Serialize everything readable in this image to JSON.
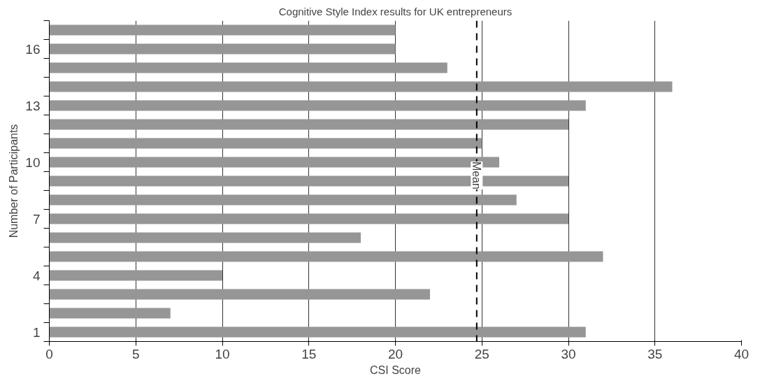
{
  "chart_data": {
    "type": "bar",
    "orientation": "horizontal",
    "title": "Cognitive Style Index results for UK entrepreneurs",
    "xlabel": "CSI Score",
    "ylabel": "Number of Participants",
    "categories": [
      null,
      "16",
      null,
      null,
      "13",
      null,
      null,
      "10",
      null,
      null,
      "7",
      null,
      null,
      "4",
      null,
      null,
      "1"
    ],
    "values": [
      20,
      20,
      23,
      36,
      31,
      30,
      25,
      26,
      30,
      27,
      30,
      18,
      32,
      10,
      22,
      7,
      31
    ],
    "color": "#969696",
    "xlim": [
      0,
      40
    ],
    "xticks": [
      0,
      5,
      10,
      15,
      20,
      25,
      30,
      35,
      40
    ],
    "grid": "x",
    "ref_lines": [
      {
        "axis": "x",
        "value": 24.7,
        "label": "Mean",
        "color": "#000000",
        "line_style": "dashed"
      }
    ]
  }
}
